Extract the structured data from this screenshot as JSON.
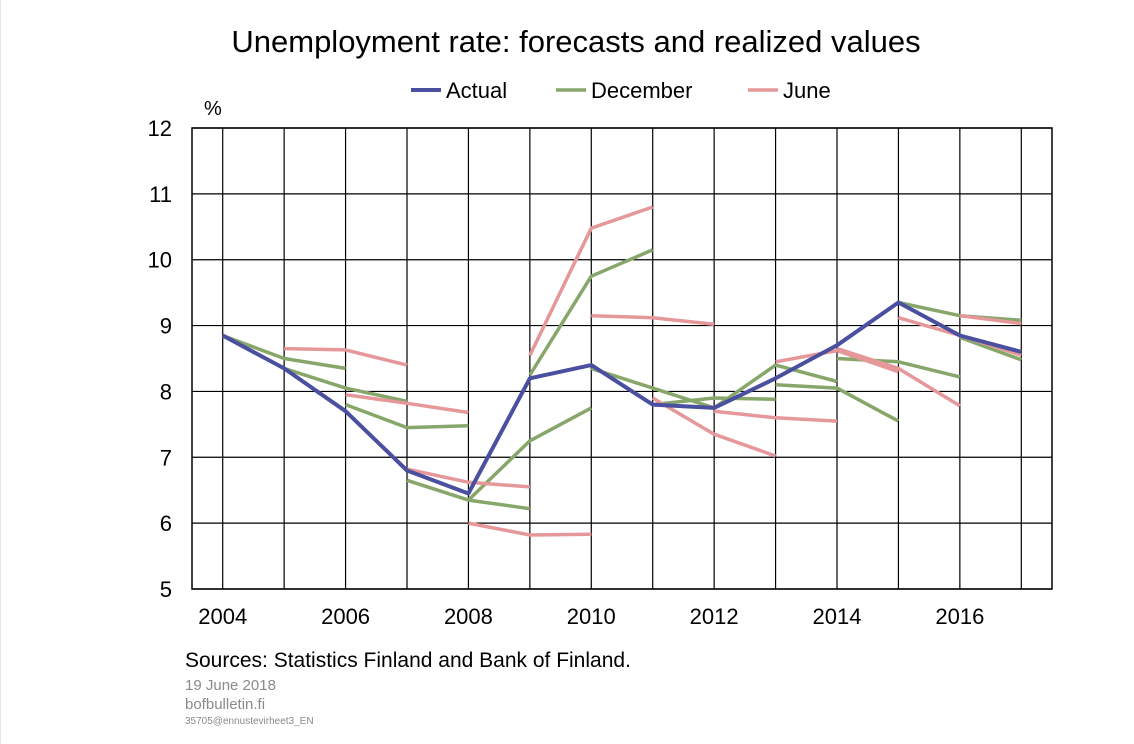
{
  "chart_data": {
    "type": "line",
    "title": "Unemployment rate: forecasts and realized values",
    "ylabel": "%",
    "xlabel": "",
    "ylim": [
      5,
      12
    ],
    "yticks": [
      5,
      6,
      7,
      8,
      9,
      10,
      11,
      12
    ],
    "xlim": [
      2003.5,
      2017.5
    ],
    "xticks": [
      2004,
      2006,
      2008,
      2010,
      2012,
      2014,
      2016
    ],
    "grid": true,
    "legend_position": "top-center",
    "legend": [
      {
        "name": "Actual",
        "color": "#4a4fa0"
      },
      {
        "name": "December",
        "color": "#86a66a"
      },
      {
        "name": "June",
        "color": "#e59799"
      }
    ],
    "series": [
      {
        "name": "Actual",
        "color": "#4a4fa0",
        "x": [
          2004,
          2005,
          2006,
          2007,
          2008,
          2009,
          2010,
          2011,
          2012,
          2013,
          2014,
          2015,
          2016,
          2017
        ],
        "values": [
          8.85,
          8.35,
          7.7,
          6.8,
          6.45,
          8.2,
          8.4,
          7.8,
          7.75,
          8.2,
          8.7,
          9.35,
          8.85,
          8.6
        ]
      }
    ],
    "forecast_paths": [
      {
        "series": "December",
        "x": [
          2004,
          2005,
          2006
        ],
        "values": [
          8.85,
          8.5,
          8.35
        ]
      },
      {
        "series": "December",
        "x": [
          2005,
          2006,
          2007
        ],
        "values": [
          8.35,
          8.05,
          7.85
        ]
      },
      {
        "series": "December",
        "x": [
          2006,
          2007,
          2008
        ],
        "values": [
          7.8,
          7.45,
          7.48
        ]
      },
      {
        "series": "December",
        "x": [
          2007,
          2008,
          2009
        ],
        "values": [
          6.65,
          6.35,
          6.22
        ]
      },
      {
        "series": "December",
        "x": [
          2008,
          2009,
          2010
        ],
        "values": [
          6.35,
          7.25,
          7.75
        ]
      },
      {
        "series": "December",
        "x": [
          2009,
          2010,
          2011
        ],
        "values": [
          8.25,
          9.75,
          10.15
        ]
      },
      {
        "series": "December",
        "x": [
          2010,
          2011,
          2012
        ],
        "values": [
          8.35,
          8.05,
          7.75
        ]
      },
      {
        "series": "December",
        "x": [
          2011,
          2012,
          2013
        ],
        "values": [
          7.8,
          7.9,
          7.88
        ]
      },
      {
        "series": "December",
        "x": [
          2012,
          2013,
          2014
        ],
        "values": [
          7.75,
          8.4,
          8.15
        ]
      },
      {
        "series": "December",
        "x": [
          2013,
          2014,
          2015
        ],
        "values": [
          8.1,
          8.05,
          7.55
        ]
      },
      {
        "series": "December",
        "x": [
          2014,
          2015,
          2016
        ],
        "values": [
          8.5,
          8.45,
          8.22
        ]
      },
      {
        "series": "December",
        "x": [
          2015,
          2016,
          2017
        ],
        "values": [
          9.35,
          9.15,
          9.08
        ]
      },
      {
        "series": "December",
        "x": [
          2016,
          2017
        ],
        "values": [
          8.82,
          8.48
        ]
      },
      {
        "series": "June",
        "x": [
          2005,
          2006,
          2007
        ],
        "values": [
          8.65,
          8.63,
          8.4
        ]
      },
      {
        "series": "June",
        "x": [
          2006,
          2007,
          2008
        ],
        "values": [
          7.95,
          7.82,
          7.68
        ]
      },
      {
        "series": "June",
        "x": [
          2007,
          2008,
          2009
        ],
        "values": [
          6.82,
          6.62,
          6.55
        ]
      },
      {
        "series": "June",
        "x": [
          2008,
          2009,
          2010
        ],
        "values": [
          6.0,
          5.82,
          5.83
        ]
      },
      {
        "series": "June",
        "x": [
          2009,
          2010,
          2011
        ],
        "values": [
          8.55,
          10.48,
          10.8
        ]
      },
      {
        "series": "June",
        "x": [
          2010,
          2011,
          2012
        ],
        "values": [
          9.15,
          9.12,
          9.02
        ]
      },
      {
        "series": "June",
        "x": [
          2011,
          2012,
          2013
        ],
        "values": [
          7.9,
          7.35,
          7.02
        ]
      },
      {
        "series": "June",
        "x": [
          2012,
          2013,
          2014
        ],
        "values": [
          7.7,
          7.6,
          7.55
        ]
      },
      {
        "series": "June",
        "x": [
          2013,
          2014,
          2015
        ],
        "values": [
          8.45,
          8.62,
          8.3
        ]
      },
      {
        "series": "June",
        "x": [
          2014,
          2015,
          2016
        ],
        "values": [
          8.65,
          8.35,
          7.78
        ]
      },
      {
        "series": "June",
        "x": [
          2015,
          2016,
          2017
        ],
        "values": [
          9.12,
          8.85,
          8.55
        ]
      },
      {
        "series": "June",
        "x": [
          2016,
          2017
        ],
        "values": [
          9.15,
          9.03
        ]
      }
    ]
  },
  "footer": {
    "source": "Sources: Statistics Finland and Bank of Finland.",
    "date": "19 June 2018",
    "site": "bofbulletin.fi",
    "code": "35705@ennustevirheet3_EN"
  }
}
